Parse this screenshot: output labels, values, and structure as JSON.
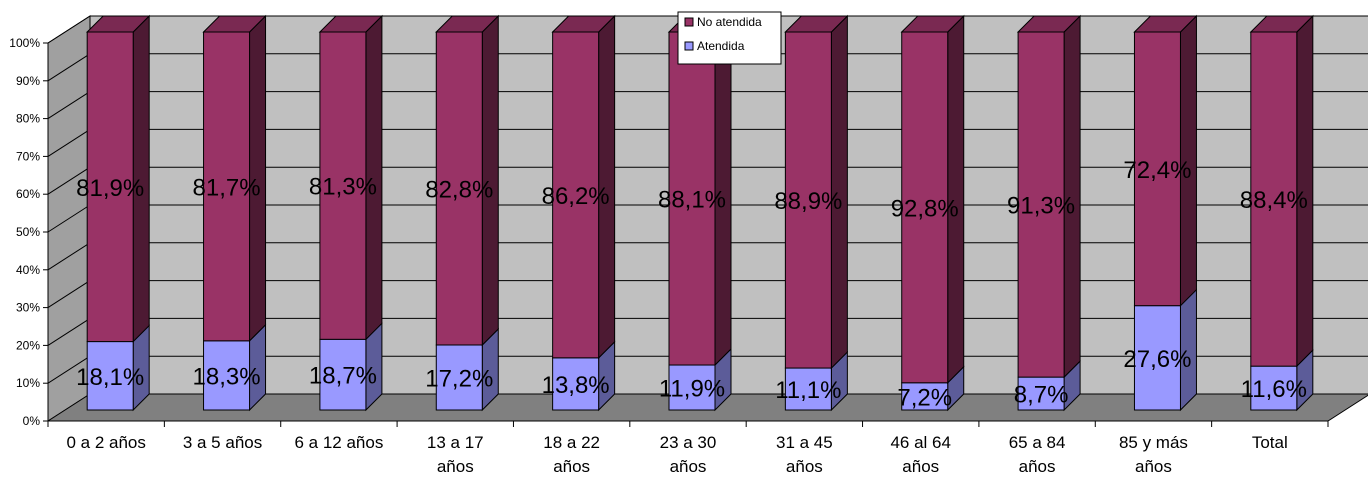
{
  "chart_data": {
    "type": "bar",
    "stacked": true,
    "percent_stacked": true,
    "three_d": true,
    "title": "",
    "xlabel": "",
    "ylabel": "",
    "ylim": [
      0,
      100
    ],
    "y_ticks": [
      "0%",
      "10%",
      "20%",
      "30%",
      "40%",
      "50%",
      "60%",
      "70%",
      "80%",
      "90%",
      "100%"
    ],
    "grid": true,
    "legend_position": "top-center",
    "categories": [
      [
        "0 a 2 años"
      ],
      [
        "3 a 5 años"
      ],
      [
        "6 a 12 años"
      ],
      [
        "13 a 17",
        "años"
      ],
      [
        "18 a 22",
        "años"
      ],
      [
        "23 a 30",
        "años"
      ],
      [
        "31 a 45",
        "años"
      ],
      [
        "46 al 64",
        "años"
      ],
      [
        "65 a 84",
        "años"
      ],
      [
        "85 y más",
        "años"
      ],
      [
        "Total"
      ]
    ],
    "series": [
      {
        "name": "Atendida",
        "color": "#9999ff",
        "side_color": "#5c5c99",
        "top_color": "#7a7acc",
        "values": [
          18.1,
          18.3,
          18.7,
          17.2,
          13.8,
          11.9,
          11.1,
          7.2,
          8.7,
          27.6,
          11.6
        ],
        "labels": [
          "18,1%",
          "18,3%",
          "18,7%",
          "17,2%",
          "13,8%",
          "11,9%",
          "11,1%",
          "7,2%",
          "8,7%",
          "27,6%",
          "11,6%"
        ]
      },
      {
        "name": "No atendida",
        "color": "#993366",
        "side_color": "#4d1a33",
        "top_color": "#7a2952",
        "values": [
          81.9,
          81.7,
          81.3,
          82.8,
          86.2,
          88.1,
          88.9,
          92.8,
          91.3,
          72.4,
          88.4
        ],
        "labels": [
          "81,9%",
          "81,7%",
          "81,3%",
          "82,8%",
          "86,2%",
          "88,1%",
          "88,9%",
          "92,8%",
          "91,3%",
          "72,4%",
          "88,4%"
        ]
      }
    ],
    "legend": [
      {
        "label": "No atendida",
        "color": "#993366"
      },
      {
        "label": "Atendida",
        "color": "#9999ff"
      }
    ],
    "colors": {
      "wall": "#c0c0c0",
      "floor": "#808080",
      "side_wall": "#a0a0a0",
      "grid": "#000000"
    }
  }
}
